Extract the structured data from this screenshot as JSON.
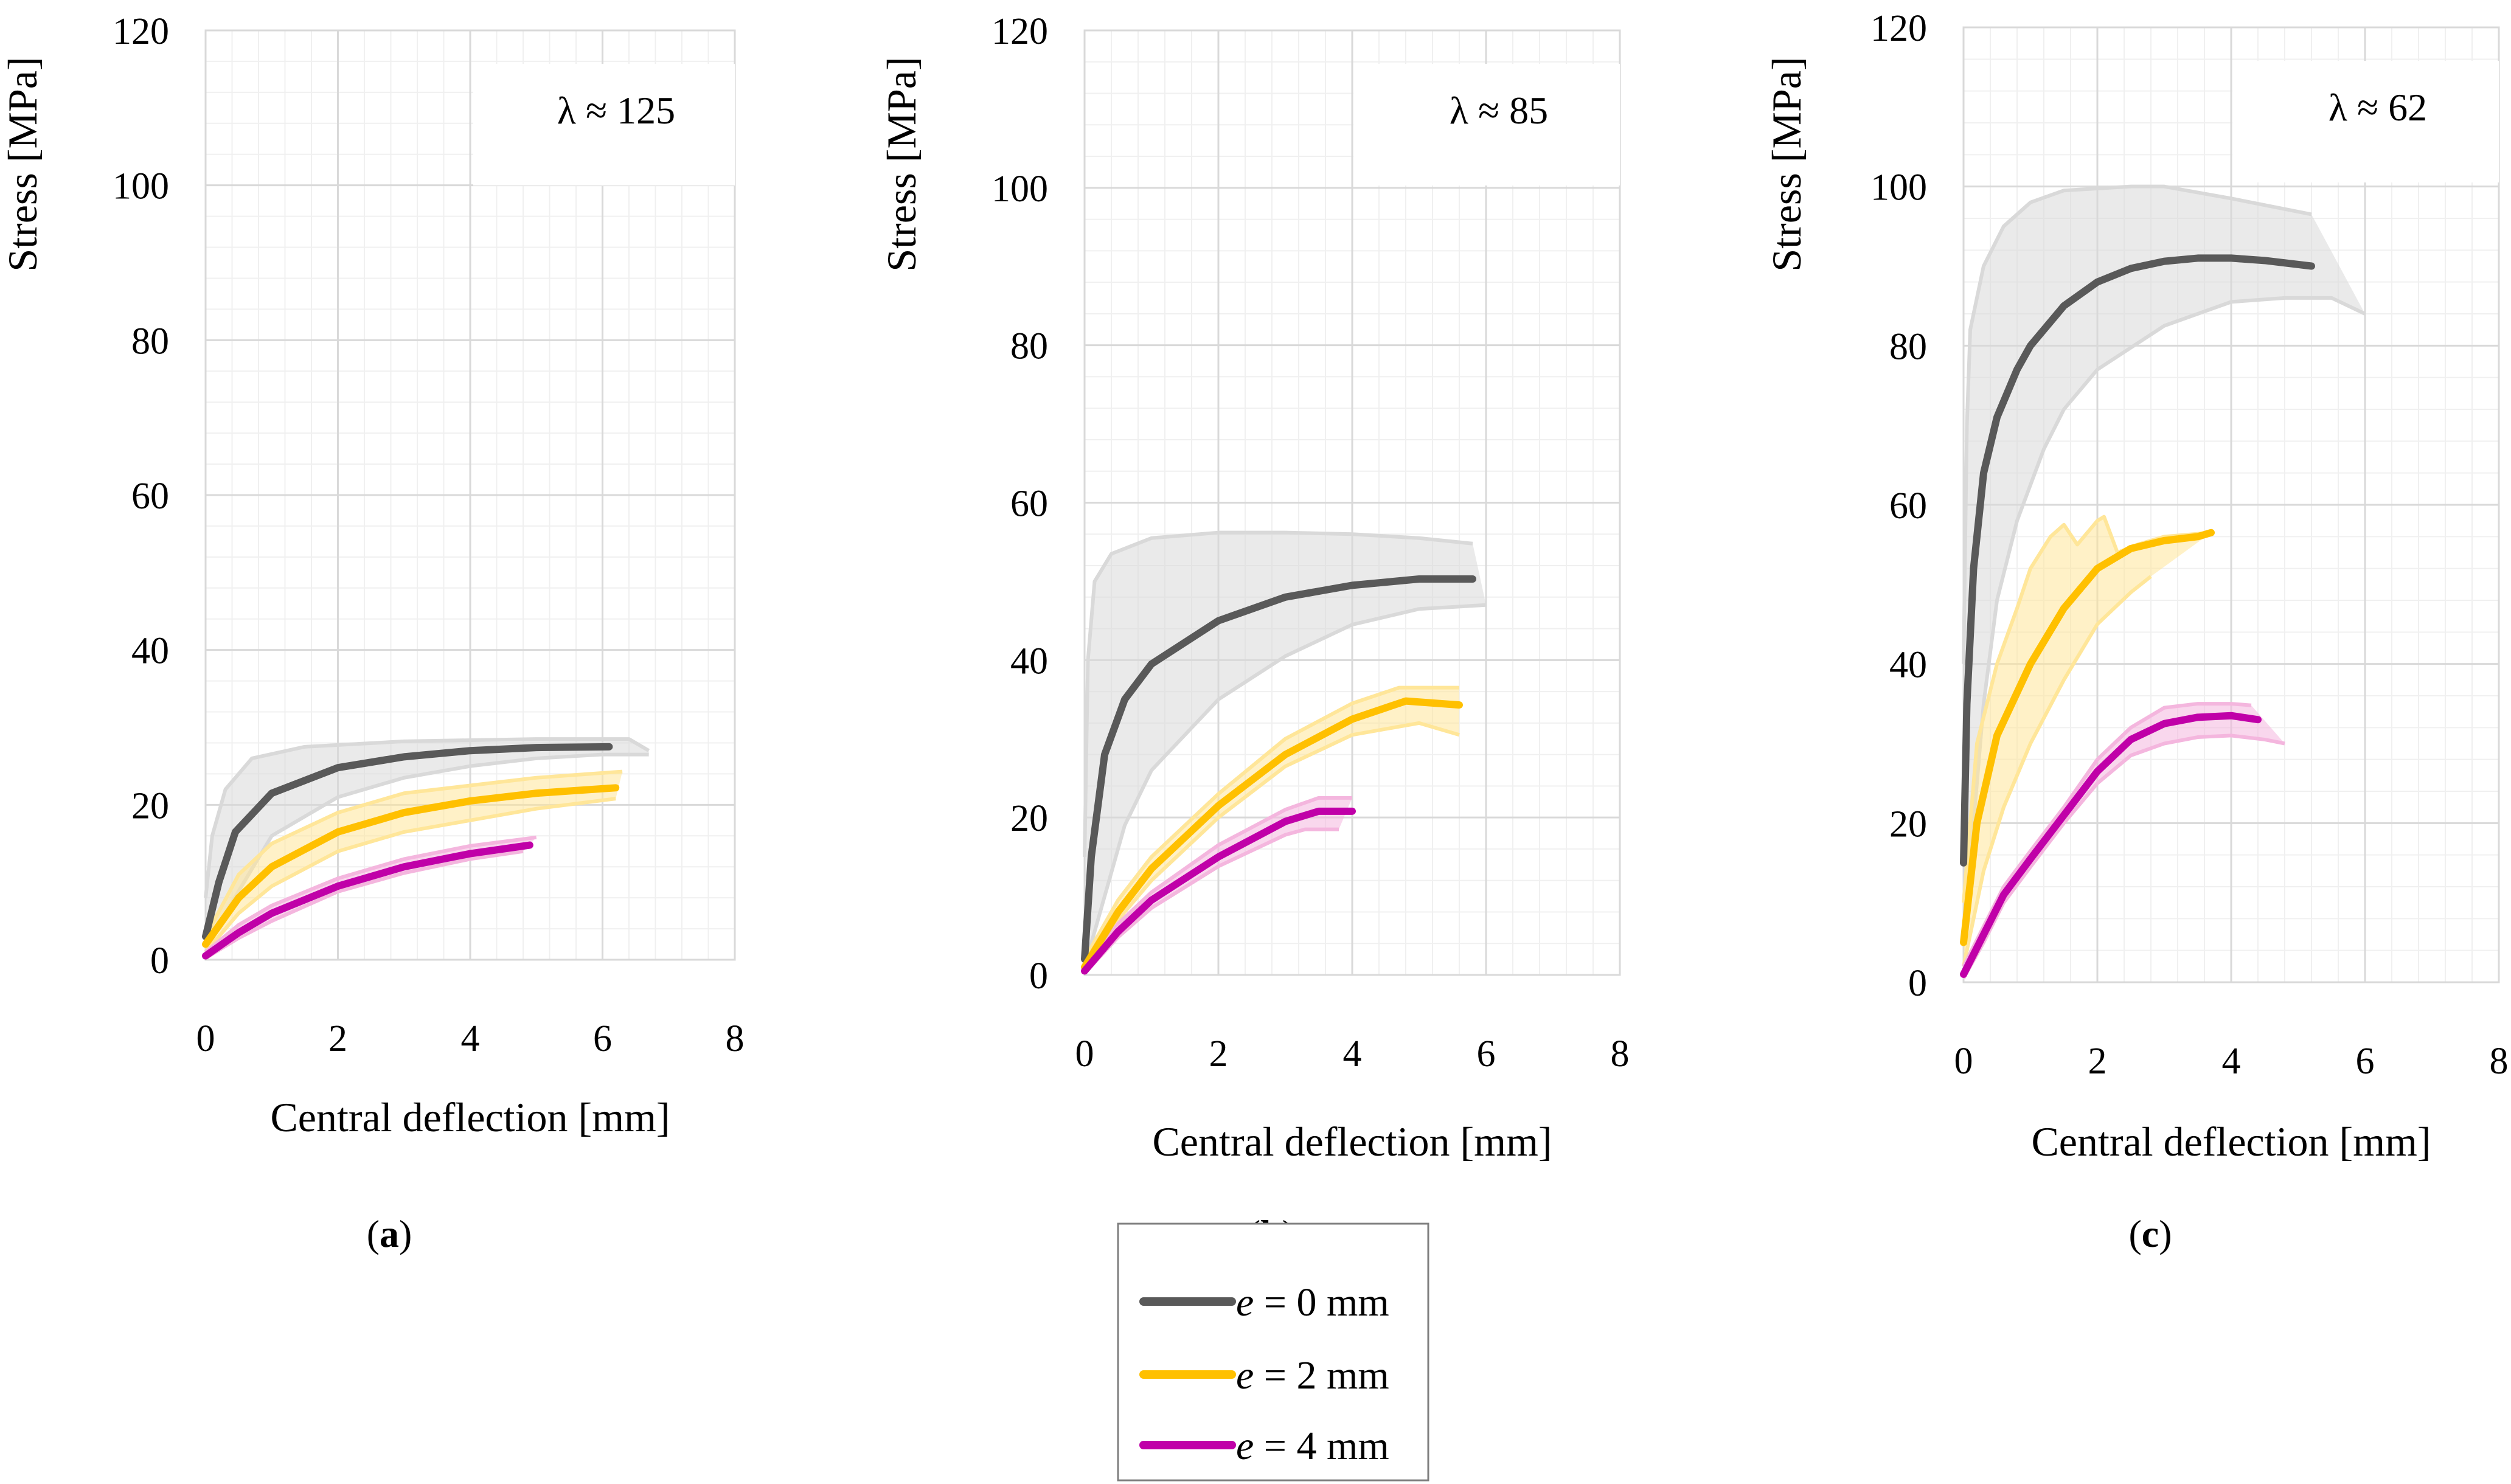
{
  "colors": {
    "e0": "#595959",
    "e2": "#ffc000",
    "e4": "#c000a8",
    "e0_band": "#d9d9d9",
    "e2_band": "#ffe699",
    "e4_band": "#f4b6de"
  },
  "legend": {
    "items": [
      {
        "prefix": "e",
        "text": " = 0 mm"
      },
      {
        "prefix": "e",
        "text": " = 2 mm"
      },
      {
        "prefix": "e",
        "text": " = 4 mm"
      }
    ]
  },
  "chart_data": [
    {
      "type": "line",
      "panel": "a",
      "caption_letter": "a",
      "slenderness": "λ ≈ 125",
      "xlabel": "Central deflection [mm]",
      "ylabel": "Stress [MPa]",
      "xlim": [
        0,
        8
      ],
      "ylim": [
        0,
        120
      ],
      "xticks": [
        "0",
        "2",
        "4",
        "6",
        "8"
      ],
      "yticks": [
        "0",
        "20",
        "40",
        "60",
        "80",
        "100",
        "120"
      ],
      "series": [
        {
          "name": "e = 0 mm",
          "key": "e0",
          "mean": [
            [
              0,
              3
            ],
            [
              0.2,
              10
            ],
            [
              0.45,
              16.5
            ],
            [
              1,
              21.5
            ],
            [
              2,
              24.8
            ],
            [
              3,
              26.2
            ],
            [
              4,
              27
            ],
            [
              5,
              27.4
            ],
            [
              6.1,
              27.5
            ]
          ],
          "upper": [
            [
              0,
              8
            ],
            [
              0.1,
              16
            ],
            [
              0.3,
              22
            ],
            [
              0.7,
              26
            ],
            [
              1.5,
              27.5
            ],
            [
              3,
              28.2
            ],
            [
              5,
              28.5
            ],
            [
              6.4,
              28.5
            ],
            [
              6.7,
              27
            ]
          ],
          "lower": [
            [
              0,
              1
            ],
            [
              0.3,
              6
            ],
            [
              1,
              16
            ],
            [
              2,
              21
            ],
            [
              3,
              23.5
            ],
            [
              4,
              25
            ],
            [
              5,
              26
            ],
            [
              6,
              26.5
            ],
            [
              6.7,
              26.5
            ]
          ]
        },
        {
          "name": "e = 2 mm",
          "key": "e2",
          "mean": [
            [
              0,
              2
            ],
            [
              0.5,
              8
            ],
            [
              1,
              12
            ],
            [
              2,
              16.5
            ],
            [
              3,
              19
            ],
            [
              4,
              20.5
            ],
            [
              5,
              21.5
            ],
            [
              6.2,
              22.2
            ]
          ],
          "upper": [
            [
              0,
              3
            ],
            [
              0.5,
              11
            ],
            [
              1,
              15
            ],
            [
              2,
              19
            ],
            [
              3,
              21.5
            ],
            [
              4,
              22.5
            ],
            [
              5,
              23.5
            ],
            [
              6.3,
              24.3
            ]
          ],
          "lower": [
            [
              0,
              1
            ],
            [
              0.5,
              6
            ],
            [
              1,
              9.5
            ],
            [
              2,
              14
            ],
            [
              3,
              16.5
            ],
            [
              4,
              18
            ],
            [
              5,
              19.5
            ],
            [
              6.2,
              20.8
            ]
          ]
        },
        {
          "name": "e = 4 mm",
          "key": "e4",
          "mean": [
            [
              0,
              0.5
            ],
            [
              0.5,
              3.5
            ],
            [
              1,
              6
            ],
            [
              2,
              9.5
            ],
            [
              3,
              12
            ],
            [
              4,
              13.7
            ],
            [
              4.9,
              14.8
            ]
          ],
          "upper": [
            [
              0,
              1
            ],
            [
              0.5,
              4.5
            ],
            [
              1,
              7
            ],
            [
              2,
              10.5
            ],
            [
              3,
              13
            ],
            [
              4,
              14.7
            ],
            [
              5,
              15.8
            ]
          ],
          "lower": [
            [
              0,
              0.2
            ],
            [
              0.5,
              2.8
            ],
            [
              1,
              5
            ],
            [
              2,
              8.8
            ],
            [
              3,
              11.2
            ],
            [
              4,
              13
            ],
            [
              4.8,
              14
            ]
          ]
        }
      ]
    },
    {
      "type": "line",
      "panel": "b",
      "caption_letter": "b",
      "slenderness": "λ ≈ 85",
      "xlabel": "Central deflection [mm]",
      "ylabel": "Stress [MPa]",
      "xlim": [
        0,
        8
      ],
      "ylim": [
        0,
        120
      ],
      "xticks": [
        "0",
        "2",
        "4",
        "6",
        "8"
      ],
      "yticks": [
        "0",
        "20",
        "40",
        "60",
        "80",
        "100",
        "120"
      ],
      "series": [
        {
          "name": "e = 0 mm",
          "key": "e0",
          "mean": [
            [
              0,
              2
            ],
            [
              0.1,
              15
            ],
            [
              0.3,
              28
            ],
            [
              0.6,
              35
            ],
            [
              1,
              39.5
            ],
            [
              2,
              45
            ],
            [
              3,
              48
            ],
            [
              4,
              49.5
            ],
            [
              5,
              50.3
            ],
            [
              5.8,
              50.3
            ]
          ],
          "upper": [
            [
              0,
              15
            ],
            [
              0.05,
              40
            ],
            [
              0.15,
              50
            ],
            [
              0.4,
              53.5
            ],
            [
              1,
              55.5
            ],
            [
              2,
              56.2
            ],
            [
              3,
              56.2
            ],
            [
              4,
              56
            ],
            [
              5,
              55.5
            ],
            [
              5.8,
              54.8
            ]
          ],
          "lower": [
            [
              0,
              1
            ],
            [
              0.3,
              10
            ],
            [
              0.6,
              19
            ],
            [
              1,
              26
            ],
            [
              2,
              35
            ],
            [
              3,
              40.5
            ],
            [
              4,
              44.5
            ],
            [
              5,
              46.5
            ],
            [
              6,
              47
            ]
          ]
        },
        {
          "name": "e = 2 mm",
          "key": "e2",
          "mean": [
            [
              0,
              1
            ],
            [
              0.5,
              8
            ],
            [
              1,
              13.5
            ],
            [
              2,
              21.5
            ],
            [
              3,
              28
            ],
            [
              4,
              32.5
            ],
            [
              4.8,
              34.8
            ],
            [
              5.6,
              34.3
            ]
          ],
          "upper": [
            [
              0,
              2
            ],
            [
              0.5,
              9.5
            ],
            [
              1,
              15
            ],
            [
              2,
              23
            ],
            [
              3,
              30
            ],
            [
              4,
              34.5
            ],
            [
              4.7,
              36.5
            ],
            [
              5.6,
              36.5
            ]
          ],
          "lower": [
            [
              0,
              0.5
            ],
            [
              0.5,
              7
            ],
            [
              1,
              12
            ],
            [
              2,
              20
            ],
            [
              3,
              26.5
            ],
            [
              4,
              30.5
            ],
            [
              5,
              32
            ],
            [
              5.6,
              30.5
            ]
          ]
        },
        {
          "name": "e = 4 mm",
          "key": "e4",
          "mean": [
            [
              0,
              0.5
            ],
            [
              0.5,
              5.5
            ],
            [
              1,
              9.5
            ],
            [
              2,
              15
            ],
            [
              3,
              19.5
            ],
            [
              3.5,
              20.8
            ],
            [
              4,
              20.8
            ]
          ],
          "upper": [
            [
              0,
              1
            ],
            [
              0.5,
              6.5
            ],
            [
              1,
              10.5
            ],
            [
              2,
              16.5
            ],
            [
              3,
              21
            ],
            [
              3.5,
              22.5
            ],
            [
              4,
              22.5
            ]
          ],
          "lower": [
            [
              0,
              0.2
            ],
            [
              0.5,
              4.8
            ],
            [
              1,
              8.5
            ],
            [
              2,
              13.8
            ],
            [
              3,
              17.8
            ],
            [
              3.3,
              18.5
            ],
            [
              3.8,
              18.5
            ]
          ]
        }
      ]
    },
    {
      "type": "line",
      "panel": "c",
      "caption_letter": "c",
      "slenderness": "λ ≈ 62",
      "xlabel": "Central deflection [mm]",
      "ylabel": "Stress [MPa]",
      "xlim": [
        0,
        8
      ],
      "ylim": [
        0,
        120
      ],
      "xticks": [
        "0",
        "2",
        "4",
        "6",
        "8"
      ],
      "yticks": [
        "0",
        "20",
        "40",
        "60",
        "80",
        "100",
        "120"
      ],
      "series": [
        {
          "name": "e = 0 mm",
          "key": "e0",
          "mean": [
            [
              0,
              15
            ],
            [
              0.05,
              35
            ],
            [
              0.15,
              52
            ],
            [
              0.3,
              64
            ],
            [
              0.5,
              71
            ],
            [
              0.8,
              77
            ],
            [
              1,
              80
            ],
            [
              1.5,
              85
            ],
            [
              2,
              88
            ],
            [
              2.5,
              89.7
            ],
            [
              3,
              90.6
            ],
            [
              3.5,
              91
            ],
            [
              4,
              91
            ],
            [
              4.5,
              90.7
            ],
            [
              5.2,
              90
            ]
          ],
          "upper": [
            [
              0,
              40
            ],
            [
              0.05,
              70
            ],
            [
              0.1,
              82
            ],
            [
              0.3,
              90
            ],
            [
              0.6,
              95
            ],
            [
              1,
              98
            ],
            [
              1.5,
              99.5
            ],
            [
              2.5,
              100
            ],
            [
              3,
              100
            ],
            [
              4,
              98.5
            ],
            [
              5.2,
              96.5
            ]
          ],
          "lower": [
            [
              0,
              5
            ],
            [
              0.1,
              15
            ],
            [
              0.3,
              35
            ],
            [
              0.5,
              48
            ],
            [
              0.8,
              58
            ],
            [
              1.2,
              67
            ],
            [
              1.5,
              72
            ],
            [
              2,
              77
            ],
            [
              3,
              82.5
            ],
            [
              4,
              85.5
            ],
            [
              4.8,
              86
            ],
            [
              5.5,
              86
            ],
            [
              6,
              84
            ]
          ]
        },
        {
          "name": "e = 2 mm",
          "key": "e2",
          "mean": [
            [
              0,
              5
            ],
            [
              0.2,
              20
            ],
            [
              0.5,
              31
            ],
            [
              1,
              40
            ],
            [
              1.5,
              47
            ],
            [
              2,
              52
            ],
            [
              2.5,
              54.5
            ],
            [
              3,
              55.5
            ],
            [
              3.5,
              56
            ],
            [
              3.7,
              56.5
            ]
          ],
          "upper": [
            [
              0,
              10
            ],
            [
              0.2,
              30
            ],
            [
              0.5,
              40
            ],
            [
              0.8,
              47
            ],
            [
              1,
              52
            ],
            [
              1.3,
              56
            ],
            [
              1.5,
              57.5
            ],
            [
              1.7,
              55
            ],
            [
              2,
              58
            ],
            [
              2.1,
              58.5
            ],
            [
              2.3,
              54
            ],
            [
              2.6,
              55
            ],
            [
              3,
              56
            ],
            [
              3.7,
              56.5
            ]
          ],
          "lower": [
            [
              0,
              2
            ],
            [
              0.3,
              14
            ],
            [
              0.6,
              22
            ],
            [
              1,
              30
            ],
            [
              1.5,
              38
            ],
            [
              2,
              45
            ],
            [
              2.5,
              49
            ],
            [
              2.8,
              51
            ]
          ]
        },
        {
          "name": "e = 4 mm",
          "key": "e4",
          "mean": [
            [
              0,
              1
            ],
            [
              0.3,
              6
            ],
            [
              0.6,
              11
            ],
            [
              1,
              15.5
            ],
            [
              1.5,
              21
            ],
            [
              2,
              26.5
            ],
            [
              2.5,
              30.5
            ],
            [
              3,
              32.5
            ],
            [
              3.5,
              33.3
            ],
            [
              4,
              33.5
            ],
            [
              4.4,
              33
            ]
          ],
          "upper": [
            [
              0,
              2
            ],
            [
              0.3,
              7
            ],
            [
              0.6,
              12
            ],
            [
              1,
              16.5
            ],
            [
              1.5,
              22
            ],
            [
              2,
              28
            ],
            [
              2.5,
              32
            ],
            [
              3,
              34.5
            ],
            [
              3.5,
              35
            ],
            [
              4,
              35
            ],
            [
              4.3,
              34.8
            ]
          ],
          "lower": [
            [
              0,
              0.5
            ],
            [
              0.3,
              5
            ],
            [
              0.6,
              10
            ],
            [
              1,
              14.5
            ],
            [
              1.5,
              20
            ],
            [
              2,
              25
            ],
            [
              2.5,
              28.5
            ],
            [
              3,
              30
            ],
            [
              3.5,
              30.8
            ],
            [
              4,
              31
            ],
            [
              4.5,
              30.5
            ],
            [
              4.8,
              30
            ]
          ]
        }
      ]
    }
  ]
}
